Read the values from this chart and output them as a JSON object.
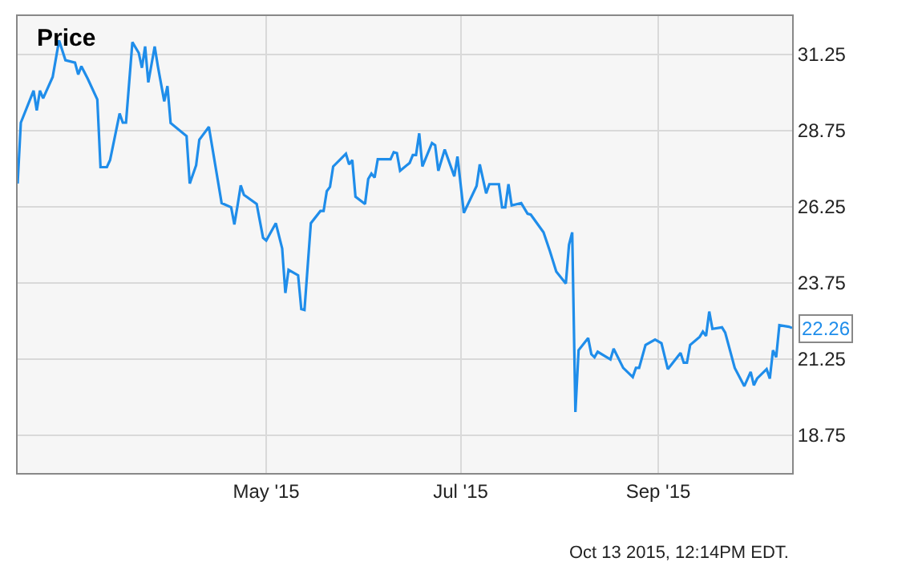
{
  "chart_data": {
    "type": "line",
    "title": "Price",
    "x": [
      "2015-02-12",
      "2015-02-13",
      "2015-02-17",
      "2015-02-18",
      "2015-02-19",
      "2015-02-20",
      "2015-02-23",
      "2015-02-25",
      "2015-02-27",
      "2015-03-02",
      "2015-03-03",
      "2015-03-04",
      "2015-03-06",
      "2015-03-09",
      "2015-03-10",
      "2015-03-12",
      "2015-03-13",
      "2015-03-16",
      "2015-03-17",
      "2015-03-18",
      "2015-03-20",
      "2015-03-22",
      "2015-03-23",
      "2015-03-24",
      "2015-03-25",
      "2015-03-27",
      "2015-03-28",
      "2015-03-30",
      "2015-03-31",
      "2015-04-01",
      "2015-04-06",
      "2015-04-07",
      "2015-04-09",
      "2015-04-10",
      "2015-04-13",
      "2015-04-17",
      "2015-04-20",
      "2015-04-21",
      "2015-04-22",
      "2015-04-23",
      "2015-04-24",
      "2015-04-28",
      "2015-04-30",
      "2015-05-01",
      "2015-05-04",
      "2015-05-06",
      "2015-05-07",
      "2015-05-08",
      "2015-05-11",
      "2015-05-12",
      "2015-05-13",
      "2015-05-15",
      "2015-05-18",
      "2015-05-19",
      "2015-05-20",
      "2015-05-21",
      "2015-05-22",
      "2015-05-26",
      "2015-05-27",
      "2015-05-28",
      "2015-05-29",
      "2015-06-01",
      "2015-06-02",
      "2015-06-03",
      "2015-06-04",
      "2015-06-05",
      "2015-06-09",
      "2015-06-10",
      "2015-06-11",
      "2015-06-12",
      "2015-06-15",
      "2015-06-16",
      "2015-06-17",
      "2015-06-18",
      "2015-06-19",
      "2015-06-22",
      "2015-06-23",
      "2015-06-24",
      "2015-06-26",
      "2015-06-29",
      "2015-06-30",
      "2015-07-02",
      "2015-07-06",
      "2015-07-07",
      "2015-07-09",
      "2015-07-10",
      "2015-07-13",
      "2015-07-14",
      "2015-07-15",
      "2015-07-16",
      "2015-07-17",
      "2015-07-20",
      "2015-07-22",
      "2015-07-23",
      "2015-07-27",
      "2015-07-29",
      "2015-07-31",
      "2015-08-03",
      "2015-08-04",
      "2015-08-05",
      "2015-08-06",
      "2015-08-07",
      "2015-08-10",
      "2015-08-11",
      "2015-08-12",
      "2015-08-13",
      "2015-08-17",
      "2015-08-18",
      "2015-08-21",
      "2015-08-24",
      "2015-08-25",
      "2015-08-26",
      "2015-08-28",
      "2015-08-31",
      "2015-09-02",
      "2015-09-04",
      "2015-09-08",
      "2015-09-09",
      "2015-09-10",
      "2015-09-11",
      "2015-09-14",
      "2015-09-15",
      "2015-09-16",
      "2015-09-17",
      "2015-09-18",
      "2015-09-21",
      "2015-09-22",
      "2015-09-25",
      "2015-09-28",
      "2015-09-30",
      "2015-10-01",
      "2015-10-02",
      "2015-10-05",
      "2015-10-06",
      "2015-10-07",
      "2015-10-08",
      "2015-10-09",
      "2015-10-12",
      "2015-10-13"
    ],
    "series": [
      {
        "color": "#1f8dea",
        "values": [
          27.0,
          29.0,
          30.05,
          29.4,
          30.05,
          29.8,
          30.5,
          31.7,
          31.05,
          30.97,
          30.58,
          30.85,
          30.44,
          29.76,
          27.54,
          27.54,
          27.77,
          29.3,
          29.0,
          29.0,
          31.64,
          31.29,
          30.8,
          31.5,
          30.32,
          31.5,
          30.85,
          29.7,
          30.2,
          28.99,
          28.56,
          27.0,
          27.6,
          28.44,
          28.86,
          26.36,
          26.22,
          25.66,
          26.28,
          26.94,
          26.63,
          26.33,
          25.22,
          25.13,
          25.7,
          24.87,
          23.41,
          24.17,
          23.99,
          22.88,
          22.85,
          25.7,
          26.1,
          26.1,
          26.75,
          26.89,
          27.56,
          27.98,
          27.63,
          27.77,
          26.57,
          26.33,
          27.15,
          27.33,
          27.2,
          27.8,
          27.8,
          28.03,
          28.0,
          27.42,
          27.68,
          27.94,
          27.94,
          28.65,
          27.56,
          28.33,
          28.26,
          27.42,
          28.12,
          27.24,
          27.89,
          26.04,
          26.92,
          27.63,
          26.68,
          26.98,
          26.98,
          26.22,
          26.22,
          26.98,
          26.28,
          26.36,
          26.01,
          25.98,
          25.4,
          24.78,
          24.11,
          23.72,
          24.99,
          25.4,
          19.5,
          21.53,
          21.93,
          21.4,
          21.3,
          21.48,
          21.23,
          21.58,
          20.95,
          20.65,
          20.95,
          20.95,
          21.7,
          21.88,
          21.76,
          20.91,
          21.44,
          21.12,
          21.12,
          21.7,
          21.97,
          22.14,
          22.0,
          22.8,
          22.23,
          22.28,
          22.11,
          20.95,
          20.35,
          20.82,
          20.38,
          20.6,
          20.91,
          20.6,
          21.53,
          21.3,
          22.35,
          22.3,
          22.26
        ]
      }
    ],
    "xlim": [
      "2015-02-12",
      "2015-10-13"
    ],
    "xticks": [
      {
        "value": "2015-05-01",
        "label": "May '15"
      },
      {
        "value": "2015-07-01",
        "label": "Jul '15"
      },
      {
        "value": "2015-09-01",
        "label": "Sep '15"
      }
    ],
    "ylim": [
      17.5,
      32.5
    ],
    "yticks": [
      18.75,
      21.25,
      23.75,
      26.25,
      28.75,
      31.25
    ],
    "grid": true,
    "marker": "none",
    "line_style": "solid",
    "annotations": [
      {
        "text": "22.26",
        "x": "2015-10-13",
        "y": 22.26
      },
      "Oct 13 2015, 12:14PM EDT."
    ]
  }
}
